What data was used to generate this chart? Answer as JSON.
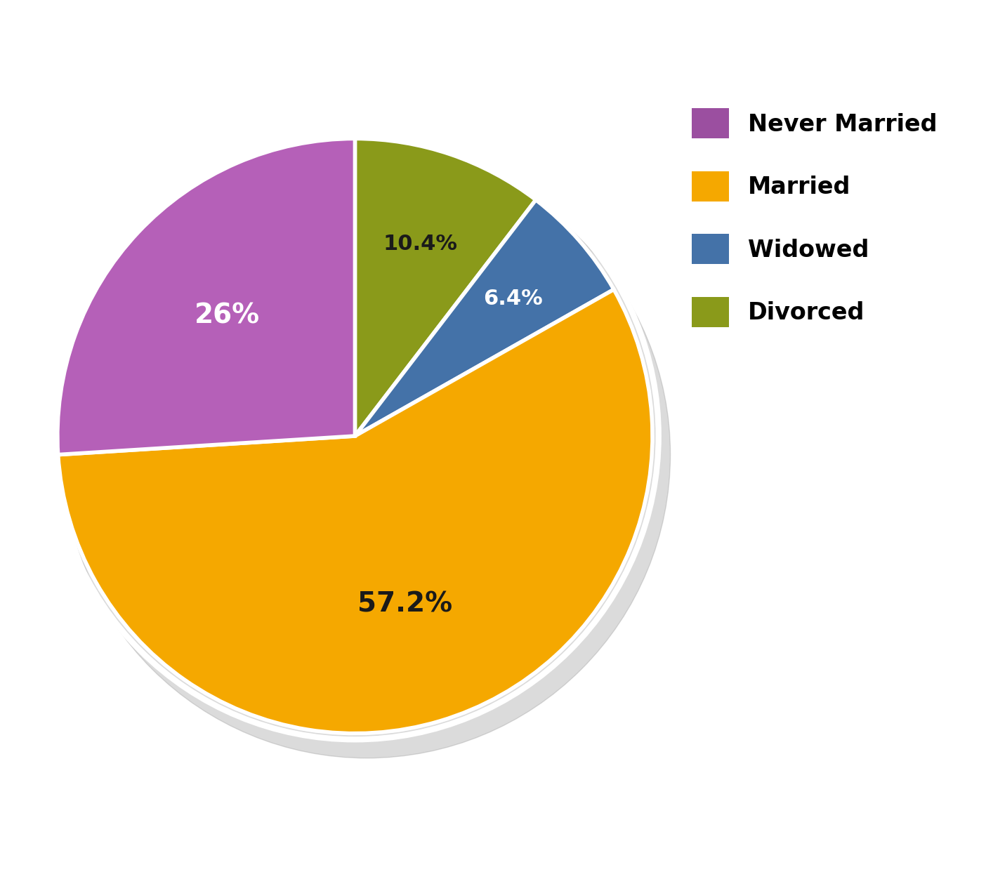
{
  "labels": [
    "Never Married",
    "Married",
    "Widowed",
    "Divorced"
  ],
  "values": [
    26.0,
    57.2,
    6.4,
    10.4
  ],
  "colors": [
    "#b560b8",
    "#f5a800",
    "#4472a8",
    "#8a9a1a"
  ],
  "pct_labels": [
    "26%",
    "57.2%",
    "6.4%",
    "10.4%"
  ],
  "pct_text_colors": [
    "white",
    "#1a1a1a",
    "white",
    "#1a1a1a"
  ],
  "legend_colors": [
    "#9b4fa0",
    "#f5a800",
    "#4472a8",
    "#8a9a1a"
  ],
  "background_color": "#ffffff",
  "wedge_edge_color": "white",
  "startangle": 90,
  "label_fontsize_large": 28,
  "label_fontsize_small": 22,
  "legend_fontsize": 24
}
